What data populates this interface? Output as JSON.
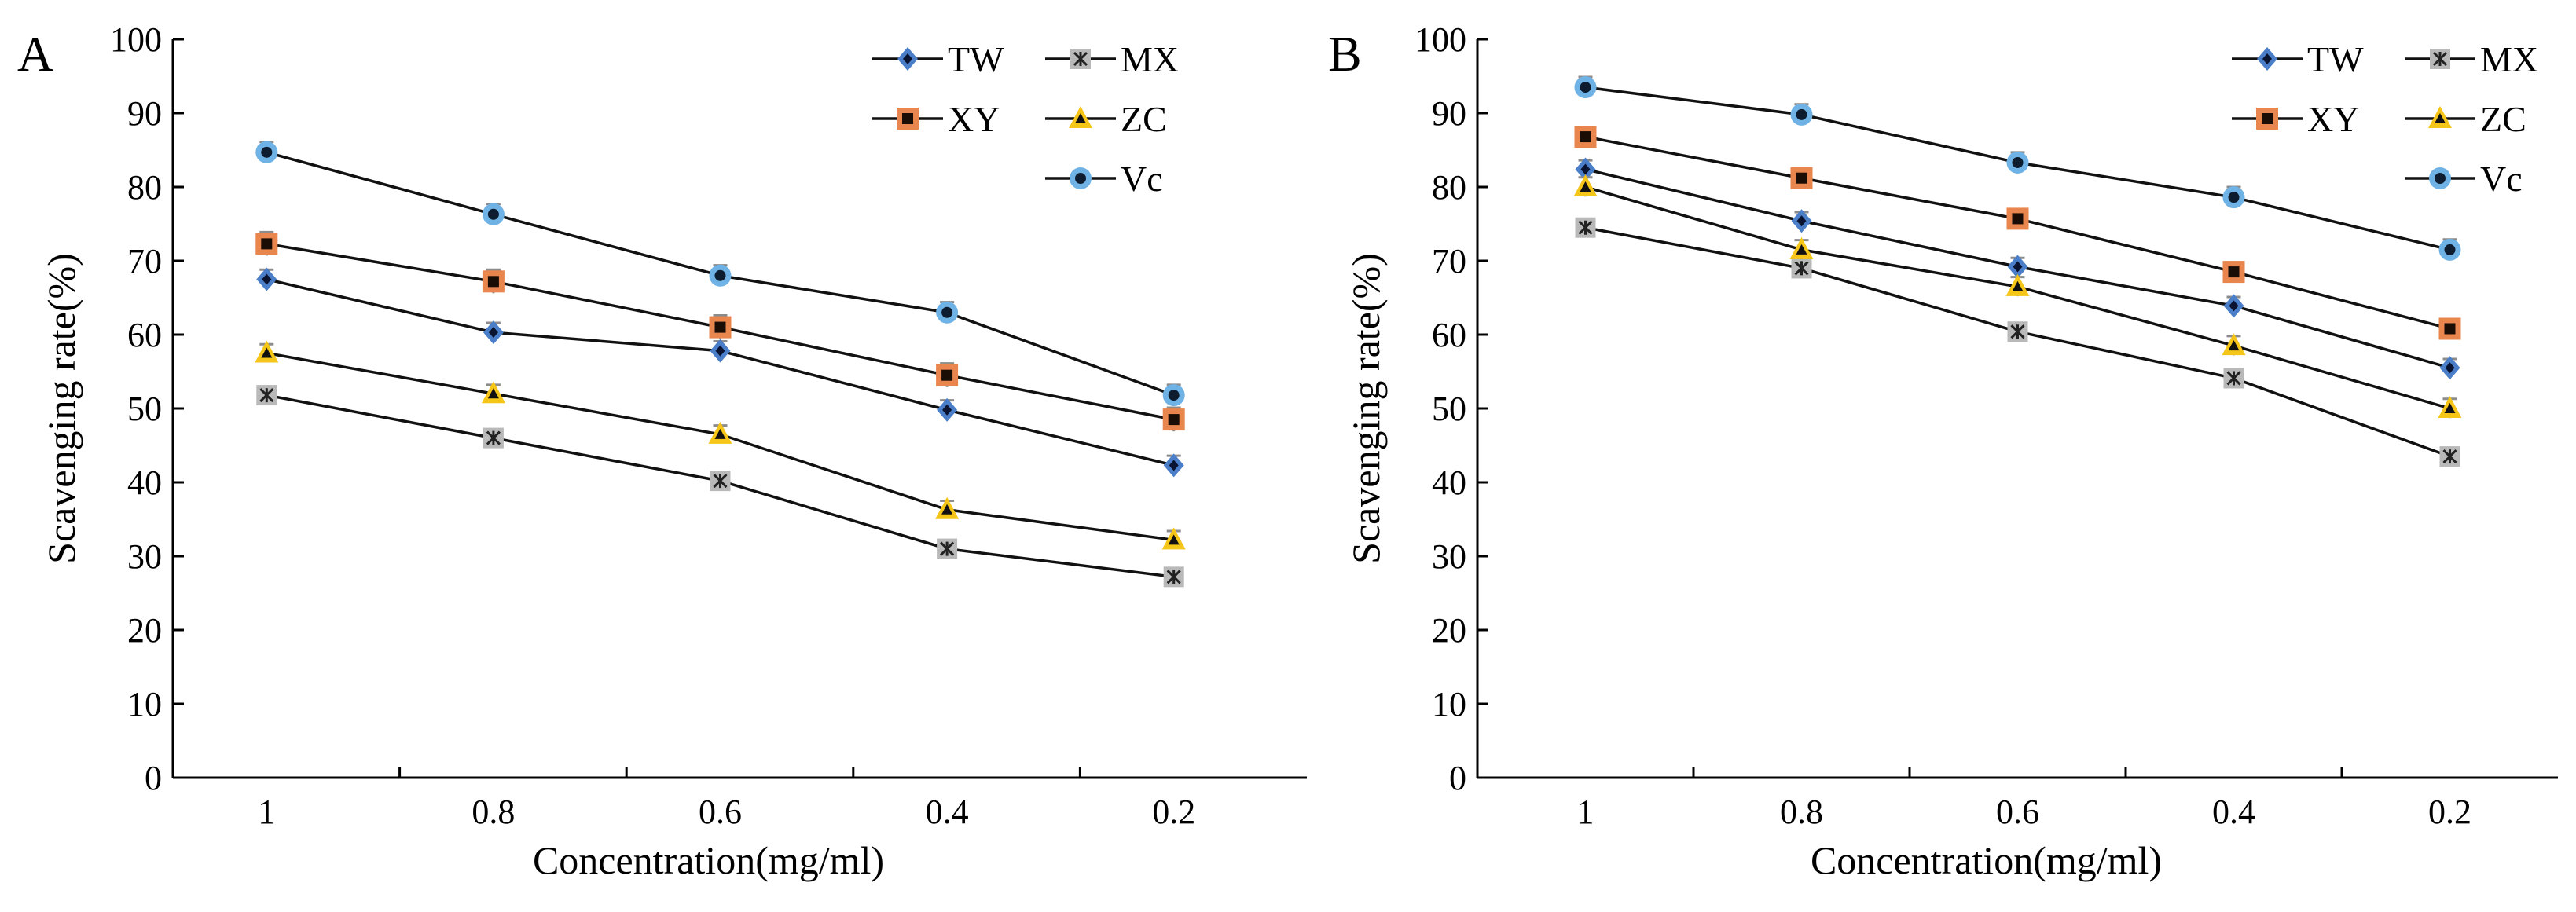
{
  "colors": {
    "axis": "#000000",
    "line": "#111111",
    "errorbar": "#8c8c8c",
    "TW": "#4a7ec8",
    "MX": "#b9b9b9",
    "XY": "#e9864e",
    "ZC": "#f5c518",
    "Vc": "#6fb2e6"
  },
  "chart_data": [
    {
      "panel": "A",
      "type": "line",
      "xlabel": "Concentration(mg/ml)",
      "ylabel": "Scavenging rate(%)",
      "categories": [
        "1",
        "0.8",
        "0.6",
        "0.4",
        "0.2"
      ],
      "ylim": [
        0,
        100
      ],
      "yticks": [
        "0",
        "10",
        "20",
        "30",
        "40",
        "50",
        "60",
        "70",
        "80",
        "90",
        "100"
      ],
      "grid": false,
      "legend_position": "top-right",
      "series": [
        {
          "name": "TW",
          "marker": "diamond",
          "values": [
            67.5,
            60.3,
            57.8,
            49.8,
            42.3
          ],
          "errors": [
            1.3,
            1.3,
            1.3,
            1.3,
            1.3
          ]
        },
        {
          "name": "MX",
          "marker": "asterisk-square",
          "values": [
            51.8,
            46.0,
            40.2,
            31.0,
            27.2
          ],
          "errors": [
            1.0,
            1.0,
            1.0,
            1.0,
            1.0
          ]
        },
        {
          "name": "XY",
          "marker": "square",
          "values": [
            72.3,
            67.2,
            61.0,
            54.5,
            48.5
          ],
          "errors": [
            1.6,
            1.6,
            1.6,
            1.6,
            1.6
          ]
        },
        {
          "name": "ZC",
          "marker": "triangle",
          "values": [
            57.5,
            52.0,
            46.5,
            36.3,
            32.2
          ],
          "errors": [
            1.2,
            1.2,
            1.2,
            1.2,
            1.2
          ]
        },
        {
          "name": "Vc",
          "marker": "circle",
          "values": [
            84.7,
            76.3,
            68.0,
            63.0,
            51.8
          ],
          "errors": [
            1.4,
            1.4,
            1.4,
            1.4,
            1.4
          ]
        }
      ]
    },
    {
      "panel": "B",
      "type": "line",
      "xlabel": "Concentration(mg/ml)",
      "ylabel": "Scavenging rate(%)",
      "categories": [
        "1",
        "0.8",
        "0.6",
        "0.4",
        "0.2"
      ],
      "ylim": [
        0,
        100
      ],
      "yticks": [
        "0",
        "10",
        "20",
        "30",
        "40",
        "50",
        "60",
        "70",
        "80",
        "90",
        "100"
      ],
      "grid": false,
      "legend_position": "top-right",
      "series": [
        {
          "name": "TW",
          "marker": "diamond",
          "values": [
            82.4,
            75.4,
            69.2,
            63.9,
            55.5
          ],
          "errors": [
            1.2,
            1.2,
            1.2,
            1.2,
            1.2
          ]
        },
        {
          "name": "MX",
          "marker": "asterisk-square",
          "values": [
            74.5,
            69.0,
            60.4,
            54.1,
            43.5
          ],
          "errors": [
            1.0,
            1.0,
            1.0,
            1.0,
            1.0
          ]
        },
        {
          "name": "XY",
          "marker": "square",
          "values": [
            86.8,
            81.2,
            75.7,
            68.5,
            60.8
          ],
          "errors": [
            1.2,
            1.2,
            1.2,
            1.2,
            1.2
          ]
        },
        {
          "name": "ZC",
          "marker": "triangle",
          "values": [
            80.0,
            71.5,
            66.5,
            58.5,
            50.0
          ],
          "errors": [
            1.3,
            1.3,
            1.3,
            1.3,
            1.3
          ]
        },
        {
          "name": "Vc",
          "marker": "circle",
          "values": [
            93.5,
            89.8,
            83.3,
            78.6,
            71.5
          ],
          "errors": [
            1.4,
            1.4,
            1.4,
            1.4,
            1.4
          ]
        }
      ]
    }
  ]
}
